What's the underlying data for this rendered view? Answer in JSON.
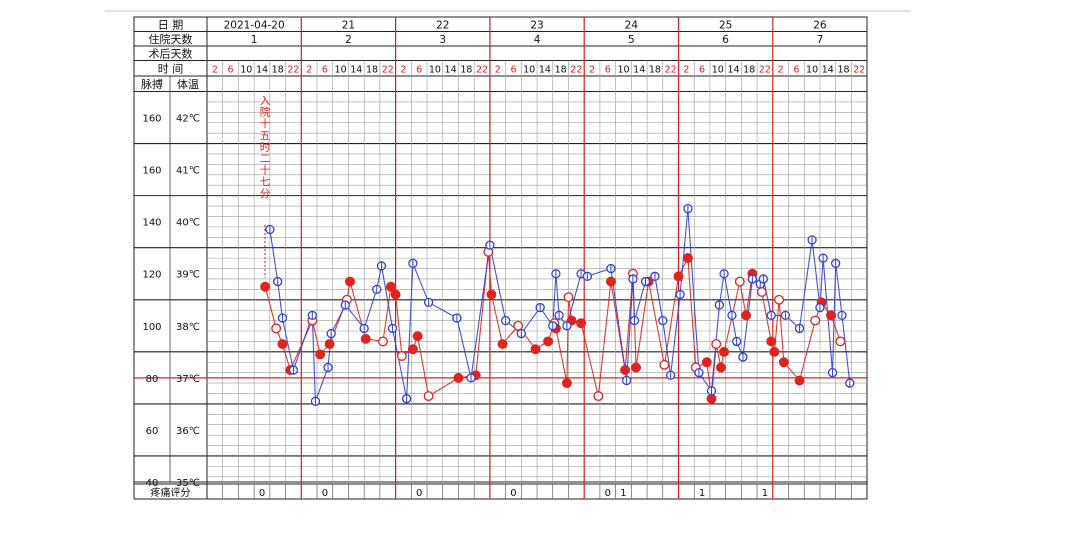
{
  "sheet": {
    "row_labels": {
      "date": "日 期",
      "hospital_days": "住院天数",
      "postop_days": "术后天数",
      "time": "时 间",
      "pulse": "脉搏",
      "temperature": "体温",
      "pain_score": "疼痛评分"
    },
    "dates": [
      "2021-04-20",
      "21",
      "22",
      "23",
      "24",
      "25",
      "26"
    ],
    "hospital_days": [
      "1",
      "2",
      "3",
      "4",
      "5",
      "6",
      "7"
    ],
    "time_slots": [
      "2",
      "6",
      "10",
      "14",
      "18",
      "22"
    ],
    "pain_scores": [
      "0",
      "0",
      "0",
      "0",
      "0",
      "1",
      "1",
      "1"
    ],
    "admission_note": "入院十五时二十七分"
  },
  "chart_data": {
    "type": "line",
    "title": "",
    "pulse_axis": {
      "label": "脉搏",
      "ticks": [
        "160",
        "160",
        "140",
        "120",
        "100",
        "80",
        "60",
        "40"
      ],
      "range": [
        40,
        160
      ]
    },
    "temp_axis": {
      "label": "体温",
      "ticks": [
        "42℃",
        "41℃",
        "40℃",
        "39℃",
        "38℃",
        "37℃",
        "36℃",
        "35℃"
      ],
      "range": [
        35,
        42
      ]
    },
    "x_unit": "4-hour slot (day 1 slot 2 = index 0)",
    "grid": true,
    "colors": {
      "pulse": "#2f3fd6",
      "temperature": "#e0231d",
      "reference_37": "#e0231d",
      "day_divider": "#d61e1e"
    },
    "series": [
      {
        "name": "脉搏",
        "color": "#2f3fd6",
        "marker": "circle-cross",
        "points": [
          [
            3.5,
            137
          ],
          [
            4,
            117
          ],
          [
            4.3,
            103
          ],
          [
            5,
            83
          ],
          [
            6.2,
            104
          ],
          [
            6.4,
            71
          ],
          [
            7.2,
            84
          ],
          [
            7.4,
            97
          ],
          [
            8.3,
            108
          ],
          [
            9.5,
            99
          ],
          [
            10.3,
            114
          ],
          [
            10.6,
            123
          ],
          [
            11.3,
            99
          ],
          [
            12.2,
            72
          ],
          [
            12.6,
            124
          ],
          [
            13.6,
            109
          ],
          [
            15.4,
            103
          ],
          [
            16.3,
            80
          ],
          [
            17.5,
            131
          ],
          [
            18.5,
            102
          ],
          [
            19.5,
            97
          ],
          [
            20.7,
            107
          ],
          [
            21.5,
            100
          ],
          [
            21.7,
            120
          ],
          [
            21.9,
            104
          ],
          [
            22.4,
            100
          ],
          [
            23.3,
            120
          ],
          [
            23.7,
            119
          ],
          [
            25.2,
            122
          ],
          [
            26.2,
            79
          ],
          [
            26.6,
            118
          ],
          [
            26.7,
            102
          ],
          [
            27.4,
            117
          ],
          [
            28,
            119
          ],
          [
            28.5,
            102
          ],
          [
            29,
            81
          ],
          [
            29.6,
            112
          ],
          [
            30.1,
            145
          ],
          [
            30.8,
            82
          ],
          [
            31.6,
            75
          ],
          [
            32.1,
            108
          ],
          [
            32.4,
            120
          ],
          [
            32.9,
            104
          ],
          [
            33.2,
            94
          ],
          [
            33.6,
            88
          ],
          [
            34.2,
            118
          ],
          [
            34.7,
            116
          ],
          [
            34.9,
            118
          ],
          [
            35.4,
            104
          ],
          [
            36.3,
            104
          ],
          [
            37.2,
            99
          ],
          [
            38,
            133
          ],
          [
            38.5,
            107
          ],
          [
            38.7,
            126
          ],
          [
            39.3,
            82
          ],
          [
            39.5,
            124
          ],
          [
            39.9,
            104
          ],
          [
            40.4,
            78
          ]
        ]
      },
      {
        "name": "体温",
        "color": "#e0231d",
        "marker": "filled-dot / ring",
        "points": [
          [
            3.2,
            38.75
          ],
          [
            3.9,
            37.95
          ],
          [
            4.3,
            37.65
          ],
          [
            4.8,
            37.15
          ],
          [
            6.2,
            38.1
          ],
          [
            6.7,
            37.45
          ],
          [
            7.3,
            37.65
          ],
          [
            8.4,
            38.5
          ],
          [
            8.6,
            38.85
          ],
          [
            9.6,
            37.75
          ],
          [
            10.7,
            37.7
          ],
          [
            11.2,
            38.75
          ],
          [
            11.5,
            38.6
          ],
          [
            11.9,
            37.42
          ],
          [
            12.6,
            37.55
          ],
          [
            12.9,
            37.8
          ],
          [
            13.6,
            36.65
          ],
          [
            15.5,
            37.0
          ],
          [
            16.6,
            37.05
          ],
          [
            17.4,
            39.42
          ],
          [
            17.6,
            38.6
          ],
          [
            18.3,
            37.65
          ],
          [
            19.3,
            38.0
          ],
          [
            20.4,
            37.55
          ],
          [
            21.2,
            37.7
          ],
          [
            21.6,
            38.05
          ],
          [
            21.7,
            37.95
          ],
          [
            22.4,
            36.9
          ],
          [
            22.5,
            38.55
          ],
          [
            22.7,
            38.1
          ],
          [
            23.3,
            38.05
          ],
          [
            24.4,
            36.65
          ],
          [
            25.2,
            38.85
          ],
          [
            26.1,
            37.15
          ],
          [
            26.6,
            39.0
          ],
          [
            26.8,
            37.2
          ],
          [
            27.6,
            38.85
          ],
          [
            28.6,
            37.25
          ],
          [
            29.5,
            38.95
          ],
          [
            30.1,
            39.3
          ],
          [
            30.6,
            37.2
          ],
          [
            31.3,
            37.3
          ],
          [
            31.6,
            36.6
          ],
          [
            31.9,
            37.65
          ],
          [
            32.2,
            37.2
          ],
          [
            32.4,
            37.5
          ],
          [
            33.4,
            38.85
          ],
          [
            33.8,
            38.2
          ],
          [
            34.2,
            39.0
          ],
          [
            34.8,
            38.65
          ],
          [
            35.4,
            37.7
          ],
          [
            35.6,
            37.5
          ],
          [
            35.9,
            38.5
          ],
          [
            36.2,
            37.3
          ],
          [
            37.2,
            36.95
          ],
          [
            38.2,
            38.1
          ],
          [
            38.6,
            38.45
          ],
          [
            39.2,
            38.2
          ],
          [
            39.8,
            37.7
          ]
        ]
      },
      {
        "name": "",
        "color": "#e0231d",
        "marker": "none",
        "points": [
          [
            0,
            37
          ],
          [
            42,
            37
          ]
        ]
      }
    ]
  }
}
